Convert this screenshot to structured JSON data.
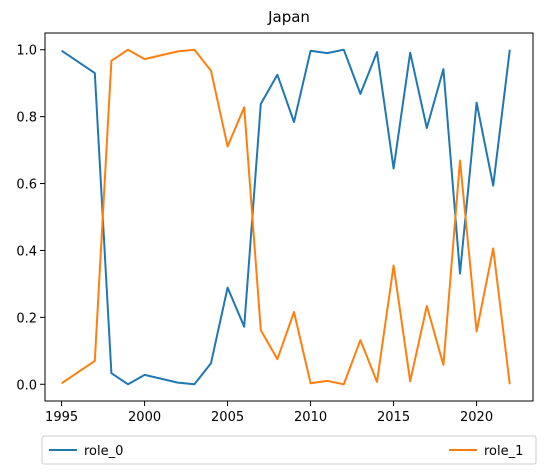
{
  "chart_data": {
    "type": "line",
    "title": "Japan",
    "xlabel": "",
    "ylabel": "",
    "x": [
      1995,
      1997,
      1998,
      1999,
      2000,
      2002,
      2003,
      2004,
      2005,
      2006,
      2007,
      2008,
      2009,
      2010,
      2011,
      2012,
      2013,
      2014,
      2015,
      2016,
      2017,
      2018,
      2019,
      2020,
      2021,
      2022
    ],
    "series": [
      {
        "name": "role_0",
        "color": "#1f77b4",
        "values": [
          0.997,
          0.93,
          0.033,
          0.0,
          0.028,
          0.005,
          0.0,
          0.063,
          0.289,
          0.172,
          0.838,
          0.925,
          0.784,
          0.997,
          0.99,
          1.0,
          0.868,
          0.993,
          0.645,
          0.991,
          0.766,
          0.942,
          0.331,
          0.842,
          0.594,
          1.0
        ]
      },
      {
        "name": "role_1",
        "color": "#ff7f0e",
        "values": [
          0.003,
          0.07,
          0.967,
          1.0,
          0.972,
          0.995,
          1.0,
          0.937,
          0.711,
          0.828,
          0.162,
          0.075,
          0.216,
          0.003,
          0.01,
          0.0,
          0.132,
          0.007,
          0.355,
          0.009,
          0.234,
          0.058,
          0.669,
          0.158,
          0.406,
          0.0
        ]
      }
    ],
    "xlim": [
      1994,
      2023.4
    ],
    "ylim": [
      -0.05,
      1.05
    ],
    "xticks": [
      "1995",
      "2000",
      "2005",
      "2010",
      "2015",
      "2020"
    ],
    "xtick_values": [
      1995,
      2000,
      2005,
      2010,
      2015,
      2020
    ],
    "yticks": [
      "0.0",
      "0.2",
      "0.4",
      "0.6",
      "0.8",
      "1.0"
    ],
    "ytick_values": [
      0.0,
      0.2,
      0.4,
      0.6,
      0.8,
      1.0
    ],
    "grid": false,
    "legend_placement": "below-plot"
  }
}
